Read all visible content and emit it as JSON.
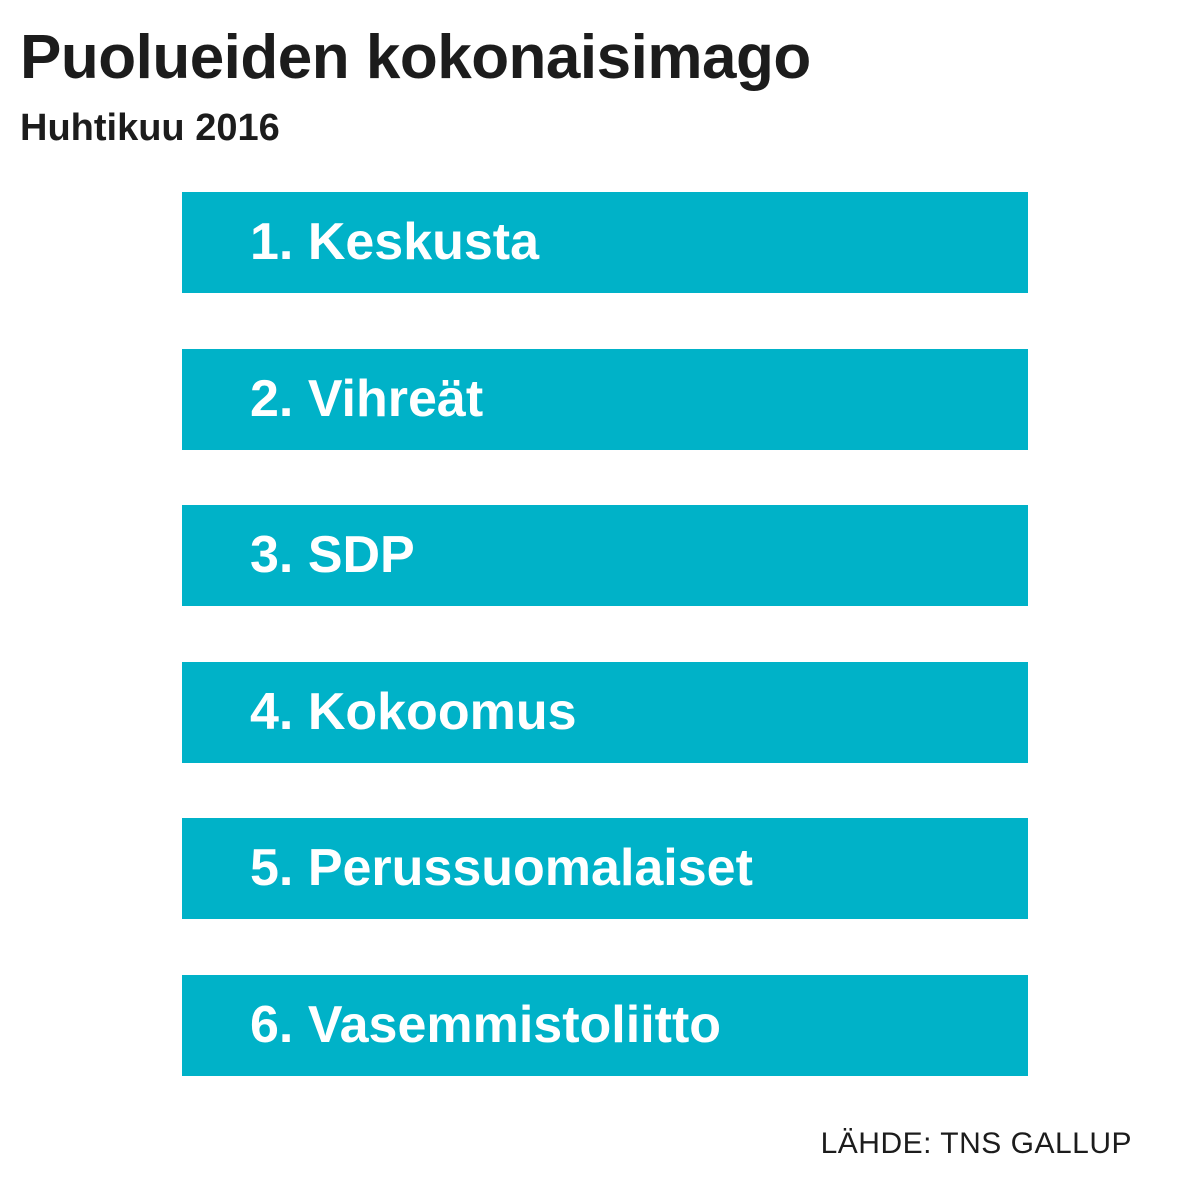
{
  "header": {
    "title": "Puolueiden kokonaisimago",
    "subtitle": "Huhtikuu 2016"
  },
  "ranking": [
    {
      "label": "1. Keskusta"
    },
    {
      "label": "2. Vihreät"
    },
    {
      "label": "3. SDP"
    },
    {
      "label": "4. Kokoomus"
    },
    {
      "label": "5. Perussuomalaiset"
    },
    {
      "label": "6. Vasemmistoliitto"
    }
  ],
  "footer": {
    "source": "LÄHDE: TNS GALLUP"
  },
  "colors": {
    "band": "#00b2c8",
    "text": "#1c1c1c",
    "band_text": "#ffffff",
    "background": "#ffffff"
  }
}
